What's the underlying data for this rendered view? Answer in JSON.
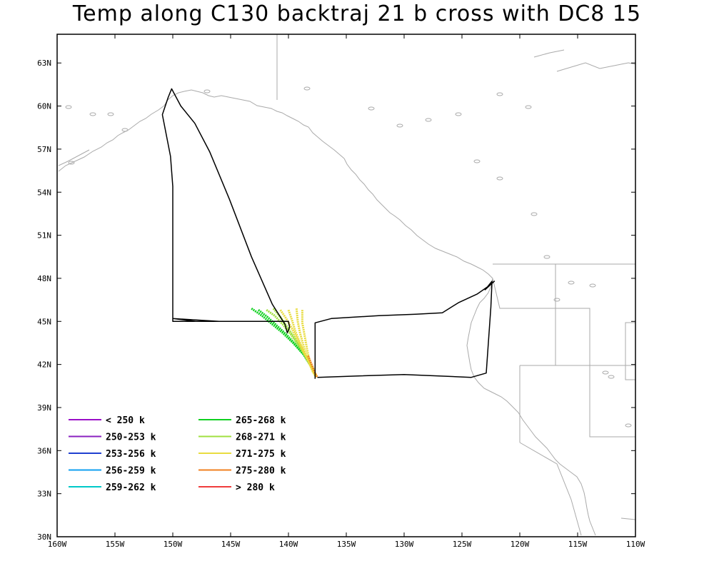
{
  "title": "Temp along C130 backtraj 21 b cross with DC8 15",
  "map": {
    "lon_range": [
      -160,
      -110
    ],
    "lat_range": [
      30,
      65
    ],
    "x_ticks": [
      {
        "lon": -160,
        "label": "160W"
      },
      {
        "lon": -155,
        "label": "155W"
      },
      {
        "lon": -150,
        "label": "150W"
      },
      {
        "lon": -145,
        "label": "145W"
      },
      {
        "lon": -140,
        "label": "140W"
      },
      {
        "lon": -135,
        "label": "135W"
      },
      {
        "lon": -130,
        "label": "130W"
      },
      {
        "lon": -125,
        "label": "125W"
      },
      {
        "lon": -120,
        "label": "120W"
      },
      {
        "lon": -115,
        "label": "115W"
      },
      {
        "lon": -110,
        "label": "110W"
      }
    ],
    "y_ticks": [
      {
        "lat": 30,
        "label": "30N"
      },
      {
        "lat": 33,
        "label": "33N"
      },
      {
        "lat": 36,
        "label": "36N"
      },
      {
        "lat": 39,
        "label": "39N"
      },
      {
        "lat": 42,
        "label": "42N"
      },
      {
        "lat": 45,
        "label": "45N"
      },
      {
        "lat": 48,
        "label": "48N"
      },
      {
        "lat": 51,
        "label": "51N"
      },
      {
        "lat": 54,
        "label": "54N"
      },
      {
        "lat": 57,
        "label": "57N"
      },
      {
        "lat": 60,
        "label": "60N"
      },
      {
        "lat": 63,
        "label": "63N"
      }
    ],
    "colors": {
      "coast": "#aaaaaa",
      "flight_track": "#000000"
    }
  },
  "legend": [
    {
      "label": "< 250 k",
      "color": "#9a10c8"
    },
    {
      "label": "250-253 k",
      "color": "#8a20c0"
    },
    {
      "label": "253-256 k",
      "color": "#2040d0"
    },
    {
      "label": "256-259 k",
      "color": "#10a0f0"
    },
    {
      "label": "259-262 k",
      "color": "#00c8c8"
    },
    {
      "label": "265-268 k",
      "color": "#10d020"
    },
    {
      "label": "268-271 k",
      "color": "#a0e040"
    },
    {
      "label": "271-275 k",
      "color": "#e8dc40"
    },
    {
      "label": "275-280 k",
      "color": "#f08020"
    },
    {
      "label": "> 280 k",
      "color": "#f03c3c"
    }
  ],
  "flight_track": [
    [
      -140.4,
      45.0
    ],
    [
      -150.0,
      45.0
    ],
    [
      -150.0,
      54.4
    ],
    [
      -150.2,
      56.5
    ],
    [
      -150.9,
      59.4
    ],
    [
      -150.4,
      60.6
    ],
    [
      -150.1,
      61.2
    ],
    [
      -149.3,
      60.0
    ],
    [
      -148.1,
      58.8
    ],
    [
      -146.8,
      56.8
    ],
    [
      -145.1,
      53.5
    ],
    [
      -143.2,
      49.5
    ],
    [
      -141.4,
      46.2
    ],
    [
      -140.3,
      44.8
    ],
    [
      -140.1,
      44.2
    ],
    [
      -139.9,
      44.6
    ],
    [
      -140.0,
      45.0
    ],
    [
      -146.0,
      45.0
    ],
    [
      -150.0,
      45.2
    ],
    [
      -150.0,
      46.0
    ],
    [
      -150.0,
      45.2
    ],
    [
      -148.0,
      45.0
    ],
    [
      -140.0,
      45.0
    ]
  ],
  "flight_track_2": [
    [
      -137.7,
      41.0
    ],
    [
      -137.7,
      44.9
    ],
    [
      -136.3,
      45.2
    ],
    [
      -132.2,
      45.4
    ],
    [
      -129.0,
      45.5
    ],
    [
      -126.7,
      45.6
    ],
    [
      -125.3,
      46.3
    ],
    [
      -123.7,
      46.9
    ],
    [
      -122.8,
      47.4
    ],
    [
      -122.2,
      47.8
    ],
    [
      -123.0,
      47.2
    ],
    [
      -122.4,
      47.8
    ],
    [
      -122.5,
      46.0
    ],
    [
      -122.9,
      41.4
    ],
    [
      -124.2,
      41.1
    ],
    [
      -130.0,
      41.3
    ],
    [
      -134.0,
      41.2
    ],
    [
      -137.5,
      41.1
    ]
  ],
  "trajectories": [
    {
      "color": "#10d020",
      "points": [
        [
          -143.2,
          45.9
        ],
        [
          -142.3,
          45.4
        ],
        [
          -141.4,
          44.8
        ],
        [
          -140.5,
          44.2
        ],
        [
          -139.6,
          43.5
        ],
        [
          -138.7,
          42.7
        ],
        [
          -138.0,
          41.8
        ],
        [
          -137.6,
          41.2
        ]
      ]
    },
    {
      "color": "#10d020",
      "points": [
        [
          -142.6,
          45.8
        ],
        [
          -141.8,
          45.3
        ],
        [
          -141.0,
          44.7
        ],
        [
          -140.2,
          44.1
        ],
        [
          -139.4,
          43.4
        ],
        [
          -138.6,
          42.6
        ],
        [
          -137.9,
          41.7
        ]
      ]
    },
    {
      "color": "#a0e040",
      "points": [
        [
          -141.9,
          45.8
        ],
        [
          -141.2,
          45.4
        ],
        [
          -140.5,
          44.8
        ],
        [
          -139.8,
          44.1
        ],
        [
          -139.1,
          43.3
        ],
        [
          -138.4,
          42.5
        ],
        [
          -137.8,
          41.6
        ]
      ]
    },
    {
      "color": "#a0e040",
      "points": [
        [
          -141.3,
          45.9
        ],
        [
          -140.7,
          45.3
        ],
        [
          -140.1,
          44.6
        ],
        [
          -139.5,
          43.9
        ],
        [
          -138.9,
          43.1
        ],
        [
          -138.3,
          42.3
        ],
        [
          -137.7,
          41.4
        ]
      ]
    },
    {
      "color": "#e8dc40",
      "points": [
        [
          -140.7,
          45.8
        ],
        [
          -140.2,
          45.2
        ],
        [
          -139.7,
          44.5
        ],
        [
          -139.2,
          43.7
        ],
        [
          -138.7,
          42.9
        ],
        [
          -138.2,
          42.1
        ],
        [
          -137.7,
          41.3
        ]
      ]
    },
    {
      "color": "#e8dc40",
      "points": [
        [
          -140.0,
          45.8
        ],
        [
          -139.7,
          45.1
        ],
        [
          -139.4,
          44.3
        ],
        [
          -139.0,
          43.5
        ],
        [
          -138.6,
          42.7
        ],
        [
          -138.1,
          41.9
        ],
        [
          -137.6,
          41.2
        ]
      ]
    },
    {
      "color": "#e8dc40",
      "points": [
        [
          -139.3,
          45.9
        ],
        [
          -139.2,
          45.0
        ],
        [
          -139.0,
          44.2
        ],
        [
          -138.7,
          43.3
        ],
        [
          -138.4,
          42.5
        ],
        [
          -138.0,
          41.7
        ],
        [
          -137.6,
          41.1
        ]
      ]
    },
    {
      "color": "#e8dc40",
      "points": [
        [
          -138.8,
          45.8
        ],
        [
          -138.8,
          44.9
        ],
        [
          -138.6,
          44.0
        ],
        [
          -138.4,
          43.1
        ],
        [
          -138.2,
          42.3
        ],
        [
          -137.9,
          41.5
        ],
        [
          -137.6,
          41.1
        ]
      ]
    },
    {
      "color": "#f08020",
      "points": [
        [
          -138.3,
          42.6
        ],
        [
          -138.0,
          42.0
        ],
        [
          -137.7,
          41.4
        ],
        [
          -137.5,
          41.1
        ]
      ]
    }
  ]
}
